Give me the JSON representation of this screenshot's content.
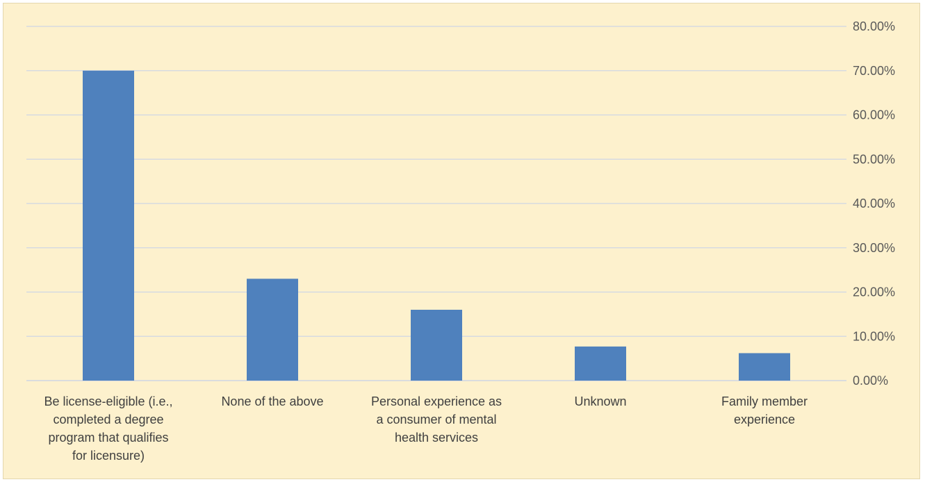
{
  "chart_data": {
    "type": "bar",
    "title": "",
    "xlabel": "",
    "ylabel": "",
    "categories": [
      [
        "Be license-eligible (i.e.,",
        "completed a degree",
        "program that qualifies",
        "for licensure)"
      ],
      [
        "None of the above"
      ],
      [
        "Personal experience as",
        "a consumer of mental",
        "health services"
      ],
      [
        "Unknown"
      ],
      [
        "Family member",
        "experience"
      ]
    ],
    "values": [
      0.7,
      0.23,
      0.16,
      0.077,
      0.062
    ],
    "ylim": [
      0,
      0.8
    ],
    "yticks": [
      "0.00%",
      "10.00%",
      "20.00%",
      "30.00%",
      "40.00%",
      "50.00%",
      "60.00%",
      "70.00%",
      "80.00%"
    ],
    "y_axis_side": "right",
    "grid": true,
    "legend": "none",
    "bar_color": "#4f81bd",
    "background_color": "#fdf1cd"
  }
}
